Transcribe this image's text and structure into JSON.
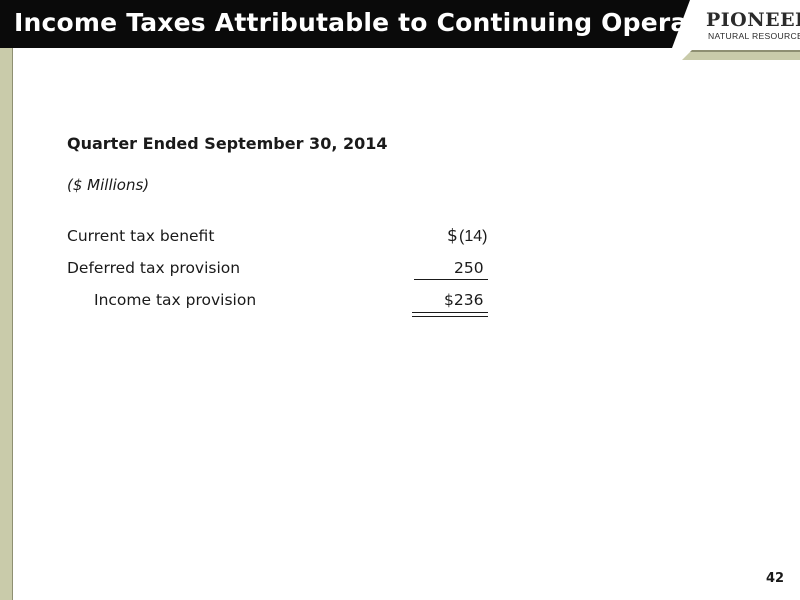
{
  "header": {
    "title": "Income Taxes Attributable to Continuing Operations",
    "logo_main": "PIONEER",
    "logo_sub": "NATURAL RESOURCES"
  },
  "colors": {
    "header_bg": "#0a0a0a",
    "accent_olive": "#c9cbaa",
    "accent_dark": "#8e8f72"
  },
  "content": {
    "period_title": "Quarter Ended September 30, 2014",
    "units": "($ Millions)",
    "rows": [
      {
        "label": "Current tax benefit",
        "currency": "$",
        "value": "(14)"
      },
      {
        "label": "Deferred tax provision",
        "currency": "",
        "value": "250"
      },
      {
        "label": "Income tax provision",
        "currency": "",
        "value": "$236"
      }
    ]
  },
  "footer": {
    "page_number": "42"
  }
}
